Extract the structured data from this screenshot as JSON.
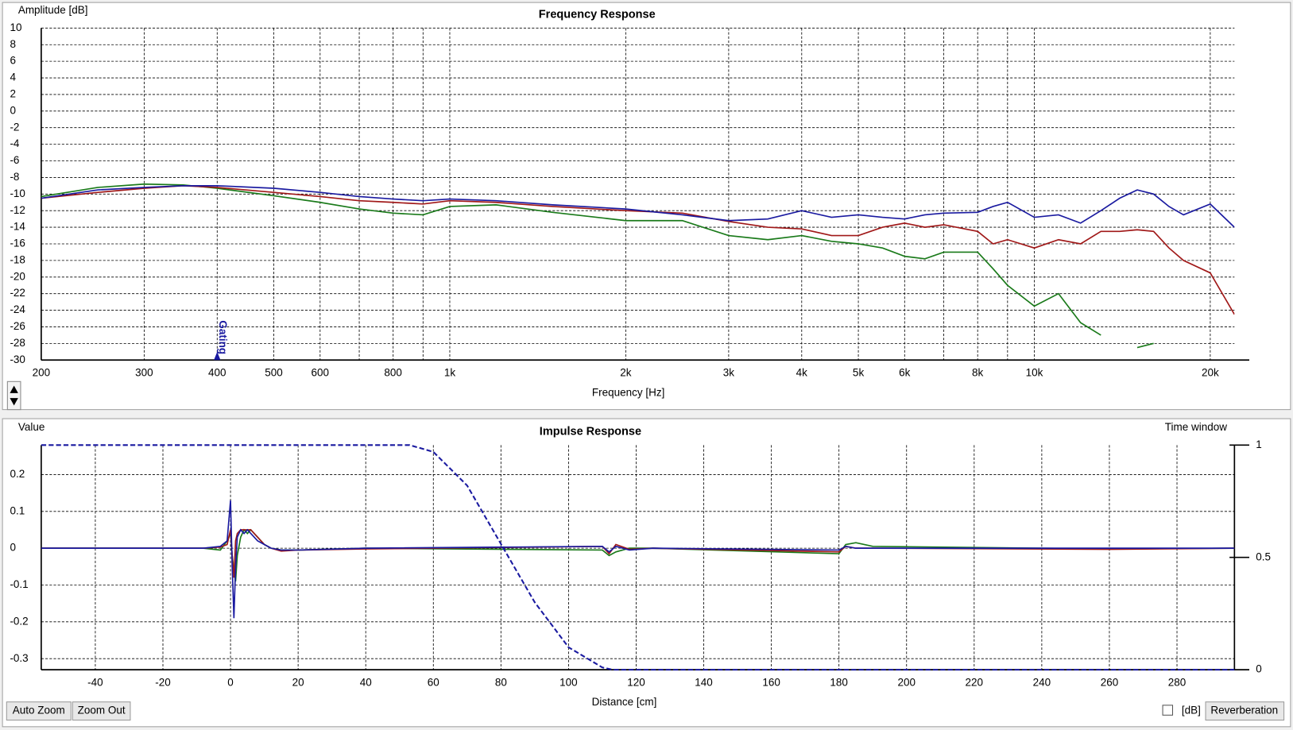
{
  "chart_data": [
    {
      "type": "line",
      "title": "Frequency Response",
      "x_label": "Frequency [Hz]",
      "y_label": "Amplitude [dB]",
      "xscale": "log",
      "xlim": [
        200,
        22000
      ],
      "ylim": [
        -30,
        10
      ],
      "grid": true,
      "xticks": [
        200,
        300,
        400,
        500,
        600,
        800,
        {
          "value": 1000,
          "label": "1k"
        },
        {
          "value": 2000,
          "label": "2k"
        },
        {
          "value": 3000,
          "label": "3k"
        },
        {
          "value": 4000,
          "label": "4k"
        },
        {
          "value": 5000,
          "label": "5k"
        },
        {
          "value": 6000,
          "label": "6k"
        },
        {
          "value": 8000,
          "label": "8k"
        },
        {
          "value": 10000,
          "label": "10k"
        },
        {
          "value": 20000,
          "label": "20k"
        }
      ],
      "xminorticks": [
        700,
        900,
        7000,
        9000
      ],
      "yticks": [
        10,
        8,
        6,
        4,
        2,
        0,
        -2,
        -4,
        -6,
        -8,
        -10,
        -12,
        -14,
        -16,
        -18,
        -20,
        -22,
        -24,
        -26,
        -28,
        -30
      ],
      "annotation": {
        "text": "Gating",
        "x": 400
      },
      "x": [
        200,
        250,
        300,
        350,
        400,
        500,
        600,
        700,
        800,
        900,
        1000,
        1200,
        1500,
        2000,
        2500,
        3000,
        3500,
        4000,
        4500,
        5000,
        5500,
        6000,
        6500,
        7000,
        8000,
        8500,
        9000,
        10000,
        11000,
        12000,
        13000,
        14000,
        15000,
        16000,
        17000,
        18000,
        20000,
        22000
      ],
      "series": [
        {
          "color": "#1a7a1a",
          "values": [
            -10.3,
            -9.2,
            -8.8,
            -8.9,
            -9.3,
            -10.2,
            -11,
            -11.8,
            -12.3,
            -12.5,
            -11.5,
            -11.3,
            -12.2,
            -13.2,
            -13.2,
            -15,
            -15.5,
            -15,
            -15.7,
            -16,
            -16.5,
            -17.5,
            -17.8,
            -17,
            -17,
            -19,
            -21,
            -23.5,
            -22,
            -25.5,
            -27,
            null,
            -28.5,
            -28,
            null,
            null,
            null,
            null
          ]
        },
        {
          "color": "#a01818",
          "values": [
            -10.5,
            -9.8,
            -9.3,
            -9,
            -9.2,
            -9.8,
            -10.3,
            -10.8,
            -11,
            -11.2,
            -10.8,
            -11,
            -11.5,
            -12,
            -12.3,
            -13.3,
            -14,
            -14.2,
            -15,
            -15,
            -14,
            -13.5,
            -14,
            -13.7,
            -14.5,
            -16,
            -15.5,
            -16.5,
            -15.5,
            -16,
            -14.5,
            -14.5,
            -14.3,
            -14.5,
            -16.5,
            -18,
            -19.5,
            -24.5
          ]
        },
        {
          "color": "#1a1aa0",
          "values": [
            -10.5,
            -9.5,
            -9.2,
            -9,
            -9,
            -9.3,
            -9.8,
            -10.3,
            -10.6,
            -10.8,
            -10.6,
            -10.8,
            -11.3,
            -11.8,
            -12.5,
            -13.2,
            -13,
            -12,
            -12.8,
            -12.5,
            -12.8,
            -13,
            -12.5,
            -12.3,
            -12.2,
            -11.5,
            -11,
            -12.8,
            -12.5,
            -13.5,
            -12,
            -10.5,
            -9.5,
            -10,
            -11.5,
            -12.5,
            -11.2,
            -14
          ]
        }
      ]
    },
    {
      "type": "line",
      "title": "Impulse Response",
      "x_label": "Distance [cm]",
      "y_label": "Value",
      "y2_label": "Time window",
      "xlim": [
        -56,
        297
      ],
      "ylim": [
        -0.33,
        0.28
      ],
      "y2lim": [
        0,
        1
      ],
      "grid": true,
      "xticks": [
        -40,
        -20,
        0,
        20,
        40,
        60,
        80,
        100,
        120,
        140,
        160,
        180,
        200,
        220,
        240,
        260,
        280
      ],
      "yticks": [
        0.2,
        0.1,
        0,
        -0.1,
        -0.2,
        -0.3
      ],
      "y2ticks": [
        0,
        0.5,
        1
      ],
      "x": [
        -56,
        -8,
        -3,
        -1,
        0,
        0.5,
        1,
        1.5,
        2,
        3,
        4,
        5,
        6,
        8,
        10,
        12,
        15,
        20,
        40,
        110,
        112,
        114,
        118,
        125,
        180,
        182,
        185,
        190,
        260,
        297
      ],
      "series": [
        {
          "color": "#1a7a1a",
          "values": [
            0,
            0,
            -0.005,
            0.02,
            0.04,
            -0.02,
            -0.06,
            -0.09,
            -0.02,
            0.03,
            0.05,
            0.04,
            0.05,
            0.03,
            0.01,
            0,
            -0.005,
            -0.005,
            0,
            -0.005,
            -0.02,
            -0.01,
            0,
            0,
            -0.015,
            0.01,
            0.015,
            0.005,
            -0.002,
            0
          ]
        },
        {
          "color": "#a01818",
          "values": [
            0,
            0,
            0.003,
            0.01,
            0.05,
            -0.02,
            -0.08,
            0.02,
            0.04,
            0.05,
            0.05,
            0.05,
            0.05,
            0.03,
            0.01,
            0,
            -0.008,
            -0.005,
            -0.002,
            0.005,
            -0.015,
            0.01,
            -0.003,
            0,
            -0.01,
            0.005,
            0,
            0,
            -0.003,
            0
          ]
        },
        {
          "color": "#1a1aa0",
          "values": [
            0,
            0,
            0.005,
            0.02,
            0.13,
            -0.05,
            -0.19,
            -0.05,
            0.03,
            0.05,
            0.04,
            0.05,
            0.04,
            0.02,
            0.01,
            0,
            -0.005,
            -0.005,
            0,
            0.005,
            -0.01,
            0.005,
            -0.005,
            0,
            -0.005,
            0.005,
            0,
            0,
            0,
            0
          ]
        },
        {
          "color": "#1a1aa0",
          "axis": "y2",
          "dash": true,
          "x": [
            -56,
            0,
            53,
            60,
            70,
            80,
            90,
            100,
            110,
            113,
            297
          ],
          "values": [
            1,
            1,
            1,
            0.97,
            0.82,
            0.56,
            0.3,
            0.1,
            0.01,
            0,
            0
          ]
        }
      ]
    }
  ],
  "buttons": {
    "auto_zoom": "Auto Zoom",
    "zoom_out": "Zoom Out",
    "db_checkbox": "[dB]",
    "reverberation": "Reverberation"
  }
}
